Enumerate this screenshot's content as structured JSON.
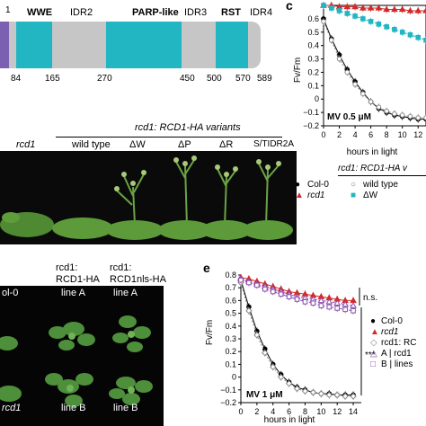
{
  "panel_a": {
    "domain_start_label": "1",
    "domains": [
      {
        "label": "WWE",
        "bold": true
      },
      {
        "label": "IDR2",
        "bold": false
      },
      {
        "label": "PARP-like",
        "bold": true
      },
      {
        "label": "IDR3",
        "bold": false
      },
      {
        "label": "RST",
        "bold": true
      },
      {
        "label": "IDR4",
        "bold": false
      }
    ],
    "positions": [
      "84",
      "165",
      "270",
      "450",
      "500",
      "570",
      "589"
    ],
    "colors": {
      "domain": "#22b5c2",
      "idr": "#c6c6c6",
      "nterm": "#7b5fb0"
    }
  },
  "panel_b": {
    "header": "rcd1: RCD1-HA variants",
    "labels": [
      "rcd1",
      "wild type",
      "ΔW",
      "ΔP",
      "ΔR",
      "S/TIDR2A"
    ]
  },
  "panel_c": {
    "letter": "c",
    "ylabel": "Fv/Fm",
    "xlabel": "hours in light",
    "annotation": "MV 0.5 μM",
    "yticks": [
      "0.6",
      "0.5",
      "0.4",
      "0.3",
      "0.2",
      "0.1",
      "0",
      "−0.1",
      "−0.2"
    ],
    "xticks": [
      "0",
      "2",
      "4",
      "6",
      "8",
      "10",
      "12"
    ],
    "legend_header": "rcd1: RCD1-HA v",
    "legend": [
      "Col-0",
      "rcd1",
      "wild type",
      "ΔW"
    ]
  },
  "panel_d": {
    "header_left": "rcd1:\nRCD1-HA",
    "header_right": "rcd1:\nRCD1nls-HA",
    "labels": [
      "ol-0",
      "line A",
      "line A",
      "line B",
      "line B",
      "rcd1"
    ]
  },
  "panel_e": {
    "letter": "e",
    "ylabel": "Fv/Fm",
    "xlabel": "hours in light",
    "annotation": "MV 1 μM",
    "yticks": [
      "0.8",
      "0.7",
      "0.6",
      "0.5",
      "0.4",
      "0.3",
      "0.2",
      "0.1",
      "0",
      "−0.1",
      "−0.2"
    ],
    "xticks": [
      "0",
      "2",
      "4",
      "6",
      "8",
      "10",
      "12",
      "14"
    ],
    "ns": "n.s.",
    "stars": "***",
    "legend": [
      "Col-0",
      "rcd1",
      "rcd1: RC",
      "A | rcd1",
      "B | lines"
    ]
  },
  "chart_data": [
    {
      "type": "line",
      "title": "MV 0.5 μM",
      "xlabel": "hours in light",
      "ylabel": "Fv/Fm",
      "ylim": [
        -0.2,
        0.7
      ],
      "xlim": [
        0,
        13
      ],
      "series": [
        {
          "name": "Col-0",
          "color": "#000000",
          "x": [
            0,
            1,
            2,
            3,
            4,
            5,
            6,
            7,
            8,
            9,
            10,
            11,
            12,
            13
          ],
          "y": [
            0.6,
            0.45,
            0.33,
            0.22,
            0.13,
            0.05,
            -0.02,
            -0.07,
            -0.1,
            -0.12,
            -0.13,
            -0.14,
            -0.15,
            -0.15
          ]
        },
        {
          "name": "rcd1",
          "color": "#d22a2a",
          "x": [
            0,
            1,
            2,
            3,
            4,
            5,
            6,
            7,
            8,
            9,
            10,
            11,
            12,
            13
          ],
          "y": [
            0.7,
            0.7,
            0.69,
            0.69,
            0.69,
            0.68,
            0.68,
            0.68,
            0.67,
            0.67,
            0.67,
            0.66,
            0.66,
            0.66
          ]
        },
        {
          "name": "wild type",
          "color": "#888888",
          "x": [
            0,
            1,
            2,
            3,
            4,
            5,
            6,
            7,
            8,
            9,
            10,
            11,
            12,
            13
          ],
          "y": [
            0.58,
            0.44,
            0.3,
            0.2,
            0.11,
            0.04,
            -0.02,
            -0.06,
            -0.09,
            -0.11,
            -0.12,
            -0.13,
            -0.14,
            -0.14
          ]
        },
        {
          "name": "ΔW",
          "color": "#22b5c2",
          "x": [
            0,
            1,
            2,
            3,
            4,
            5,
            6,
            7,
            8,
            9,
            10,
            11,
            12,
            13
          ],
          "y": [
            0.7,
            0.68,
            0.66,
            0.64,
            0.62,
            0.6,
            0.58,
            0.56,
            0.54,
            0.52,
            0.5,
            0.48,
            0.46,
            0.44
          ]
        }
      ]
    },
    {
      "type": "line",
      "title": "MV 1 μM",
      "xlabel": "hours in light",
      "ylabel": "Fv/Fm",
      "ylim": [
        -0.2,
        0.8
      ],
      "xlim": [
        0,
        15
      ],
      "series": [
        {
          "name": "Col-0",
          "color": "#000000",
          "x": [
            0,
            1,
            2,
            3,
            4,
            5,
            6,
            7,
            8,
            9,
            10,
            11,
            12,
            13,
            14
          ],
          "y": [
            0.76,
            0.55,
            0.36,
            0.22,
            0.1,
            0.02,
            -0.04,
            -0.08,
            -0.1,
            -0.12,
            -0.13,
            -0.13,
            -0.14,
            -0.14,
            -0.14
          ]
        },
        {
          "name": "rcd1",
          "color": "#d22a2a",
          "x": [
            0,
            1,
            2,
            3,
            4,
            5,
            6,
            7,
            8,
            9,
            10,
            11,
            12,
            13,
            14
          ],
          "y": [
            0.78,
            0.77,
            0.75,
            0.73,
            0.71,
            0.69,
            0.67,
            0.66,
            0.65,
            0.64,
            0.63,
            0.62,
            0.61,
            0.6,
            0.6
          ]
        },
        {
          "name": "rcd1: RC",
          "color": "#888888",
          "x": [
            0,
            1,
            2,
            3,
            4,
            5,
            6,
            7,
            8,
            9,
            10,
            11,
            12,
            13,
            14
          ],
          "y": [
            0.74,
            0.52,
            0.33,
            0.19,
            0.08,
            0.0,
            -0.05,
            -0.09,
            -0.11,
            -0.12,
            -0.13,
            -0.14,
            -0.14,
            -0.15,
            -0.15
          ]
        },
        {
          "name": "A | rcd1",
          "color": "#8a4fb0",
          "x": [
            0,
            1,
            2,
            3,
            4,
            5,
            6,
            7,
            8,
            9,
            10,
            11,
            12,
            13,
            14
          ],
          "y": [
            0.77,
            0.75,
            0.73,
            0.71,
            0.69,
            0.67,
            0.65,
            0.63,
            0.62,
            0.61,
            0.6,
            0.59,
            0.58,
            0.57,
            0.56
          ]
        },
        {
          "name": "B | lines",
          "color": "#8a4fb0",
          "x": [
            0,
            1,
            2,
            3,
            4,
            5,
            6,
            7,
            8,
            9,
            10,
            11,
            12,
            13,
            14
          ],
          "y": [
            0.76,
            0.74,
            0.72,
            0.69,
            0.67,
            0.65,
            0.63,
            0.61,
            0.59,
            0.58,
            0.56,
            0.55,
            0.54,
            0.53,
            0.52
          ]
        }
      ]
    }
  ]
}
